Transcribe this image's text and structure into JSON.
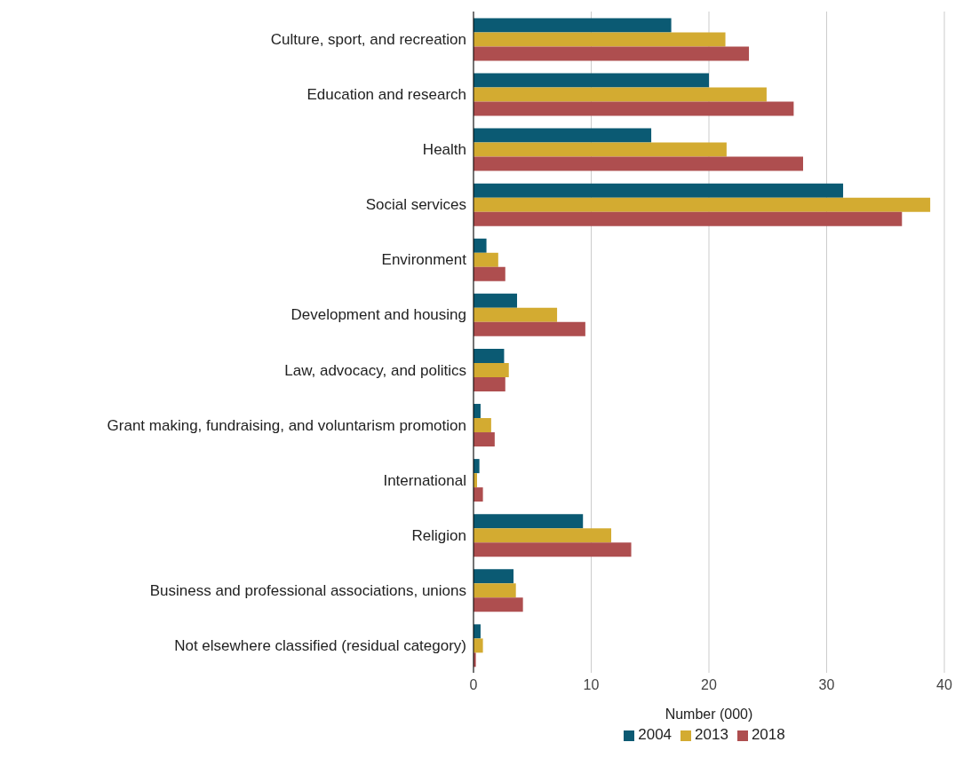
{
  "chart_data": {
    "type": "bar",
    "orientation": "horizontal",
    "xlabel": "Number (000)",
    "categories": [
      "Culture, sport, and recreation",
      "Education and research",
      "Health",
      "Social services",
      "Environment",
      "Development and housing",
      "Law, advocacy, and politics",
      "Grant making, fundraising, and voluntarism promotion",
      "International",
      "Religion",
      "Business and professional associations, unions",
      "Not elsewhere classified (residual category)"
    ],
    "series": [
      {
        "name": "2004",
        "color": "#0b5a73",
        "values": [
          16.8,
          20.0,
          15.1,
          31.4,
          1.1,
          3.7,
          2.6,
          0.6,
          0.5,
          9.3,
          3.4,
          0.6
        ]
      },
      {
        "name": "2013",
        "color": "#d3ab31",
        "values": [
          21.4,
          24.9,
          21.5,
          38.8,
          2.1,
          7.1,
          3.0,
          1.5,
          0.3,
          11.7,
          3.6,
          0.8
        ]
      },
      {
        "name": "2018",
        "color": "#ae4e4f",
        "values": [
          23.4,
          27.2,
          28.0,
          36.4,
          2.7,
          9.5,
          2.7,
          1.8,
          0.8,
          13.4,
          4.2,
          0.2
        ]
      }
    ],
    "xlim": [
      0,
      40
    ],
    "xticks": [
      0,
      10,
      20,
      30,
      40
    ],
    "grid": "x",
    "legend": "bottom"
  }
}
